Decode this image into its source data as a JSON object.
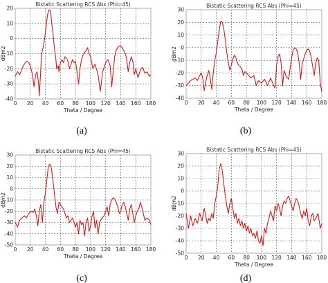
{
  "chart_data": [
    {
      "id": "a",
      "type": "line",
      "title": "Bistatic Scattering RCS Abs (Phi=45)",
      "xlabel": "Theta / Degree",
      "ylabel": "dBm2",
      "xlim": [
        0,
        180
      ],
      "ylim": [
        -40,
        20
      ],
      "xticks": [
        0,
        20,
        40,
        60,
        80,
        100,
        120,
        140,
        160,
        180
      ],
      "yticks": [
        -40,
        -30,
        -20,
        -10,
        0,
        10,
        20
      ],
      "grid": true,
      "caption": "(a)",
      "series": [
        {
          "color": "#d21a1a",
          "x": [
            0,
            3,
            6,
            9,
            12,
            15,
            18,
            20,
            22,
            24,
            25,
            27,
            29,
            31,
            32,
            34,
            35,
            37,
            39,
            41,
            43,
            45,
            47,
            48,
            50,
            52,
            54,
            55,
            57,
            58,
            60,
            62,
            64,
            66,
            68,
            70,
            72,
            74,
            76,
            78,
            80,
            82,
            84,
            86,
            88,
            90,
            92,
            94,
            96,
            98,
            100,
            103,
            106,
            110,
            113,
            116,
            120,
            123,
            126,
            128,
            130,
            132,
            134,
            136,
            138,
            140,
            142,
            144,
            146,
            148,
            150,
            152,
            154,
            156,
            158,
            160,
            163,
            166,
            169,
            172,
            175,
            178,
            180
          ],
          "y": [
            -25,
            -22,
            -24,
            -20,
            -17,
            -15,
            -16,
            -18,
            -22,
            -28,
            -32,
            -24,
            -22,
            -30,
            -38,
            -20,
            -10,
            -6,
            0,
            8,
            16,
            19,
            18,
            12,
            4,
            -6,
            -14,
            -20,
            -18,
            -22,
            -16,
            -14,
            -16,
            -12,
            -13,
            -15,
            -20,
            -17,
            -14,
            -16,
            -15,
            -22,
            -30,
            -20,
            -14,
            -11,
            -9,
            -8,
            -6,
            -10,
            -12,
            -20,
            -17,
            -24,
            -35,
            -22,
            -16,
            -14,
            -18,
            -32,
            -22,
            -12,
            -8,
            -6,
            -5,
            -5,
            -6,
            -8,
            -10,
            -14,
            -22,
            -16,
            -12,
            -15,
            -24,
            -20,
            -26,
            -21,
            -19,
            -23,
            -22,
            -25,
            -24
          ]
        }
      ]
    },
    {
      "id": "b",
      "type": "line",
      "title": "Bistatic Scattering RCS Abs (Phi=45)",
      "xlabel": "Theta / Degree",
      "ylabel": "dBm2",
      "xlim": [
        0,
        180
      ],
      "ylim": [
        -40,
        30
      ],
      "xticks": [
        0,
        20,
        40,
        60,
        80,
        100,
        120,
        140,
        160,
        180
      ],
      "yticks": [
        -40,
        -30,
        -20,
        -10,
        0,
        10,
        20,
        30
      ],
      "grid": true,
      "caption": "(b)",
      "series": [
        {
          "color": "#d21a1a",
          "x": [
            0,
            3,
            6,
            9,
            12,
            15,
            18,
            20,
            22,
            24,
            26,
            28,
            30,
            32,
            34,
            36,
            38,
            40,
            42,
            44,
            46,
            48,
            50,
            52,
            54,
            56,
            58,
            60,
            62,
            64,
            66,
            68,
            70,
            72,
            74,
            76,
            78,
            80,
            83,
            86,
            90,
            93,
            96,
            100,
            104,
            108,
            112,
            115,
            118,
            120,
            122,
            124,
            126,
            128,
            130,
            133,
            136,
            138,
            140,
            142,
            144,
            146,
            148,
            150,
            152,
            154,
            156,
            158,
            160,
            162,
            164,
            166,
            168,
            170,
            172,
            174,
            176,
            178,
            180
          ],
          "y": [
            -30,
            -28,
            -26,
            -25,
            -24,
            -26,
            -22,
            -20,
            -24,
            -34,
            -27,
            -22,
            -18,
            -24,
            -33,
            -20,
            -10,
            -4,
            5,
            14,
            21,
            20,
            15,
            6,
            -4,
            -12,
            -18,
            -14,
            -9,
            -6,
            -8,
            -12,
            -14,
            -15,
            -17,
            -22,
            -19,
            -20,
            -22,
            -24,
            -22,
            -30,
            -26,
            -28,
            -25,
            -30,
            -24,
            -28,
            -32,
            -14,
            -7,
            -5,
            -12,
            -30,
            -18,
            -23,
            -25,
            -16,
            -8,
            -2,
            0,
            -1,
            -4,
            -12,
            -25,
            -13,
            -9,
            -5,
            -2,
            -1,
            -3,
            -8,
            -15,
            -22,
            -12,
            -8,
            -10,
            -28,
            -35
          ]
        }
      ]
    },
    {
      "id": "c",
      "type": "line",
      "title": "Bistatic Scattering RCS Abs (Phi=45)",
      "xlabel": "Theta / Degree",
      "ylabel": "dBm2",
      "xlim": [
        0,
        180
      ],
      "ylim": [
        -50,
        30
      ],
      "xticks": [
        0,
        20,
        40,
        60,
        80,
        100,
        120,
        140,
        160,
        180
      ],
      "yticks": [
        -50,
        -40,
        -30,
        -20,
        -10,
        0,
        10,
        20,
        30
      ],
      "grid": true,
      "caption": "(c)",
      "series": [
        {
          "color": "#d21a1a",
          "x": [
            0,
            3,
            6,
            9,
            12,
            15,
            18,
            21,
            24,
            26,
            28,
            30,
            32,
            34,
            36,
            38,
            40,
            42,
            44,
            46,
            48,
            50,
            52,
            54,
            56,
            58,
            60,
            62,
            64,
            66,
            68,
            70,
            72,
            74,
            76,
            78,
            80,
            82,
            84,
            86,
            88,
            90,
            92,
            94,
            96,
            98,
            100,
            102,
            104,
            106,
            108,
            110,
            112,
            115,
            118,
            120,
            122,
            124,
            126,
            128,
            130,
            132,
            134,
            136,
            138,
            140,
            142,
            144,
            146,
            148,
            150,
            152,
            154,
            156,
            158,
            160,
            162,
            164,
            166,
            168,
            170,
            172,
            175,
            178,
            180
          ],
          "y": [
            -30,
            -34,
            -28,
            -26,
            -24,
            -26,
            -22,
            -20,
            -21,
            -18,
            -24,
            -33,
            -20,
            -14,
            -30,
            -12,
            -4,
            8,
            20,
            22,
            18,
            8,
            -4,
            -16,
            -22,
            -12,
            -14,
            -16,
            -18,
            -22,
            -26,
            -24,
            -30,
            -28,
            -26,
            -30,
            -34,
            -30,
            -40,
            -28,
            -32,
            -30,
            -42,
            -30,
            -26,
            -38,
            -33,
            -24,
            -20,
            -35,
            -28,
            -40,
            -30,
            -26,
            -24,
            -20,
            -16,
            -24,
            -14,
            -10,
            -8,
            -9,
            -12,
            -16,
            -22,
            -20,
            -14,
            -12,
            -16,
            -22,
            -28,
            -18,
            -14,
            -22,
            -30,
            -24,
            -20,
            -18,
            -12,
            -16,
            -22,
            -28,
            -26,
            -28,
            -32
          ]
        }
      ]
    },
    {
      "id": "d",
      "type": "line",
      "title": "Bistatic Scattering RCS Abs (Phi=45)",
      "xlabel": "Theta / Degree",
      "ylabel": "dBm2",
      "xlim": [
        0,
        180
      ],
      "ylim": [
        -50,
        30
      ],
      "xticks": [
        0,
        20,
        40,
        60,
        80,
        100,
        120,
        140,
        160,
        180
      ],
      "yticks": [
        -50,
        -40,
        -30,
        -20,
        -10,
        0,
        10,
        20,
        30
      ],
      "grid": true,
      "caption": "(d)",
      "series": [
        {
          "color": "#d21a1a",
          "x": [
            0,
            3,
            6,
            9,
            12,
            15,
            18,
            21,
            24,
            26,
            28,
            30,
            32,
            34,
            36,
            38,
            40,
            42,
            44,
            46,
            48,
            50,
            52,
            54,
            56,
            58,
            60,
            62,
            64,
            66,
            68,
            70,
            72,
            74,
            76,
            78,
            80,
            82,
            84,
            86,
            88,
            90,
            92,
            94,
            96,
            98,
            100,
            102,
            104,
            106,
            108,
            110,
            112,
            114,
            116,
            118,
            120,
            122,
            124,
            126,
            128,
            130,
            132,
            134,
            136,
            138,
            140,
            142,
            144,
            146,
            148,
            150,
            152,
            154,
            156,
            158,
            160,
            162,
            164,
            166,
            168,
            170,
            172,
            175,
            178,
            180
          ],
          "y": [
            -18,
            -30,
            -20,
            -28,
            -22,
            -26,
            -18,
            -24,
            -14,
            -20,
            -26,
            -22,
            -24,
            -18,
            -22,
            -10,
            -4,
            4,
            18,
            22,
            16,
            6,
            -4,
            -12,
            -18,
            -10,
            -6,
            -14,
            -22,
            -18,
            -26,
            -22,
            -28,
            -24,
            -30,
            -26,
            -32,
            -28,
            -34,
            -30,
            -36,
            -34,
            -38,
            -32,
            -40,
            -42,
            -36,
            -44,
            -30,
            -34,
            -26,
            -22,
            -16,
            -20,
            -24,
            -12,
            -16,
            -10,
            -14,
            -20,
            -12,
            -8,
            -10,
            -6,
            -4,
            -8,
            -12,
            -16,
            -10,
            -6,
            -8,
            -12,
            -18,
            -22,
            -16,
            -20,
            -14,
            -24,
            -28,
            -20,
            -18,
            -24,
            -22,
            -18,
            -30,
            -26
          ]
        }
      ]
    }
  ]
}
